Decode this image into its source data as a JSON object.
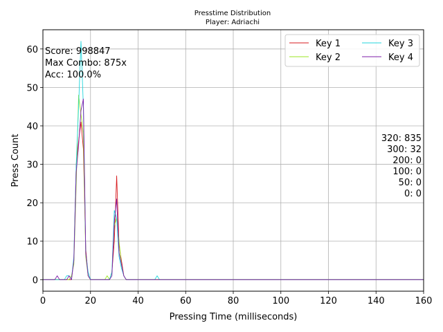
{
  "chart_data": {
    "type": "line",
    "title": "Presstime Distribution",
    "subtitle": "Player: Adriachi",
    "xlabel": "Pressing Time (milliseconds)",
    "ylabel": "Press Count",
    "xlim": [
      0,
      160
    ],
    "ylim": [
      -3,
      65
    ],
    "xticks": [
      0,
      20,
      40,
      60,
      80,
      100,
      120,
      140,
      160
    ],
    "yticks": [
      0,
      10,
      20,
      30,
      40,
      50,
      60
    ],
    "grid": true,
    "legend_position": "top-right",
    "series": [
      {
        "name": "Key 1",
        "color": "#d7191c",
        "x": [
          0,
          10,
          11,
          12,
          13,
          14,
          15,
          16,
          17,
          18,
          19,
          20,
          27,
          28,
          29,
          30,
          31,
          32,
          33,
          34,
          35,
          160
        ],
        "y": [
          0,
          0,
          0,
          0,
          5,
          30,
          36,
          41,
          34,
          8,
          1,
          0,
          0,
          0,
          2,
          10,
          27,
          9,
          5,
          1,
          0,
          0
        ]
      },
      {
        "name": "Key 2",
        "color": "#9be620",
        "x": [
          0,
          10,
          11,
          12,
          13,
          14,
          15,
          16,
          17,
          18,
          19,
          20,
          26,
          27,
          28,
          29,
          30,
          31,
          32,
          33,
          34,
          35,
          160
        ],
        "y": [
          0,
          0,
          0,
          1,
          4,
          25,
          48,
          43,
          38,
          6,
          1,
          0,
          0,
          1,
          0,
          2,
          14,
          16,
          10,
          4,
          1,
          0,
          0
        ]
      },
      {
        "name": "Key 3",
        "color": "#21d6dd",
        "x": [
          0,
          9,
          10,
          11,
          12,
          13,
          14,
          15,
          16,
          17,
          18,
          19,
          20,
          28,
          29,
          30,
          31,
          32,
          33,
          34,
          35,
          47,
          48,
          49,
          160
        ],
        "y": [
          0,
          0,
          1,
          1,
          0,
          6,
          30,
          45,
          62,
          45,
          7,
          2,
          0,
          0,
          2,
          18,
          16,
          6,
          3,
          1,
          0,
          0,
          1,
          0,
          0
        ]
      },
      {
        "name": "Key 4",
        "color": "#7e1ba8",
        "x": [
          0,
          5,
          6,
          7,
          10,
          11,
          12,
          13,
          14,
          15,
          16,
          17,
          18,
          19,
          20,
          28,
          29,
          30,
          31,
          32,
          33,
          34,
          35,
          160
        ],
        "y": [
          0,
          0,
          1,
          0,
          0,
          1,
          0,
          5,
          28,
          35,
          44,
          47,
          7,
          1,
          0,
          0,
          1,
          15,
          21,
          7,
          4,
          1,
          0,
          0
        ]
      }
    ],
    "annotations_left": [
      "Score: 998847",
      "Max Combo: 875x",
      "Acc: 100.0%"
    ],
    "annotations_right": [
      "320: 835",
      "300: 32",
      "200: 0",
      "100: 0",
      "50: 0",
      "0: 0"
    ]
  }
}
